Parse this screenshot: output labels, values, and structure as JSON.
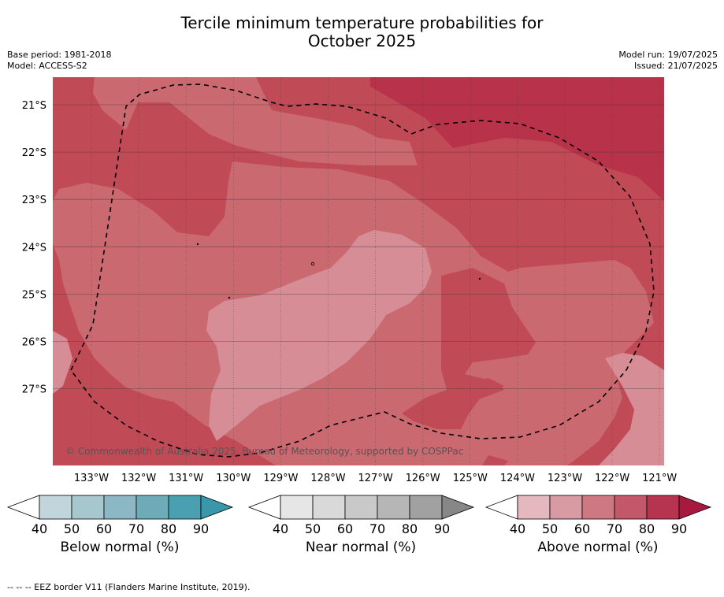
{
  "title_line1": "Tercile minimum temperature probabilities for",
  "title_line2": "October 2025",
  "base_period": "Base period: 1981-2018",
  "model": "Model: ACCESS-S2",
  "model_run": "Model run: 19/07/2025",
  "issued": "Issued: 21/07/2025",
  "map": {
    "lat_labels": [
      "21°S",
      "22°S",
      "23°S",
      "24°S",
      "25°S",
      "26°S",
      "27°S"
    ],
    "lon_labels": [
      "133°W",
      "132°W",
      "131°W",
      "130°W",
      "129°W",
      "128°W",
      "127°W",
      "126°W",
      "125°W",
      "124°W",
      "123°W",
      "122°W",
      "121°W"
    ],
    "credit": "© Commonwealth of Australia 2025, Bureau of Meteorology, supported by COSPPac",
    "colors": {
      "above_50": "#d68d95",
      "above_60": "#cb6971",
      "above_70": "#c14a57",
      "above_80": "#b8334a"
    }
  },
  "colorbars": [
    {
      "title": "Below normal (%)",
      "ticks": [
        "40",
        "50",
        "60",
        "70",
        "80",
        "90"
      ],
      "colors": [
        "#c0d6dc",
        "#a7c7cf",
        "#8bb8c4",
        "#6eabb9",
        "#4a9fb0"
      ],
      "extend_color": "#3a97a9"
    },
    {
      "title": "Near normal (%)",
      "ticks": [
        "40",
        "50",
        "60",
        "70",
        "80",
        "90"
      ],
      "colors": [
        "#e6e6e6",
        "#d9d9d9",
        "#c9c9c9",
        "#b6b6b6",
        "#a1a1a1"
      ],
      "extend_color": "#878787"
    },
    {
      "title": "Above normal (%)",
      "ticks": [
        "40",
        "50",
        "60",
        "70",
        "80",
        "90"
      ],
      "colors": [
        "#e4b8be",
        "#d89aa3",
        "#cd7882",
        "#c2586a",
        "#b73450"
      ],
      "extend_color": "#a8193f"
    }
  ],
  "footer": "--  --  -- EEZ border V11 (Flanders Marine Institute, 2019)."
}
